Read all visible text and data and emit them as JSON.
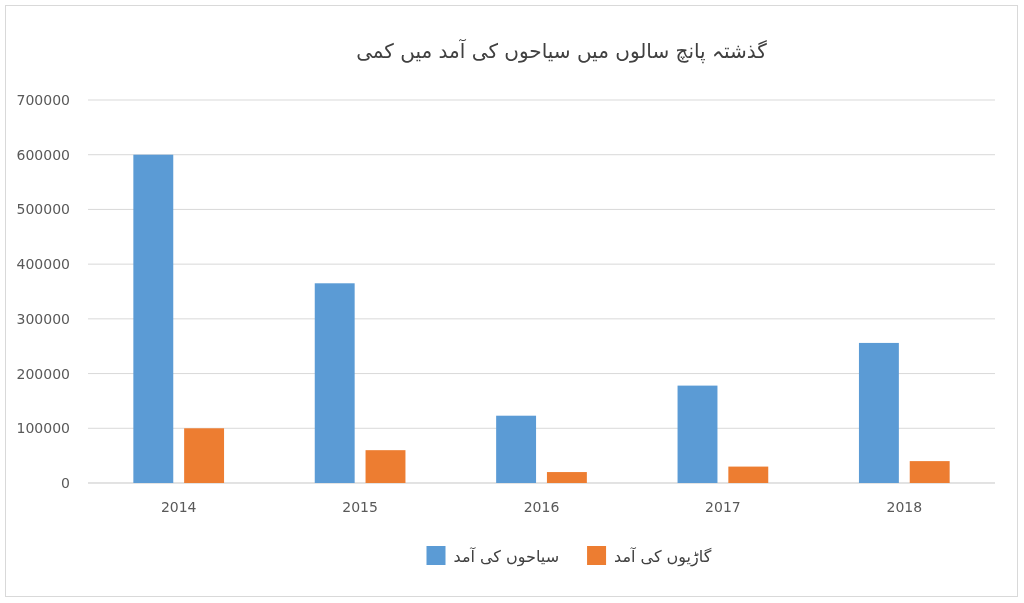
{
  "chart_data": {
    "type": "bar",
    "title": "گذشتہ پانچ سالوں میں سیاحوں کی آمد میں کمی",
    "categories": [
      "2014",
      "2015",
      "2016",
      "2017",
      "2018"
    ],
    "series": [
      {
        "name": "سیاحوں کی آمد",
        "color": "#5b9bd5",
        "values": [
          600000,
          365000,
          123000,
          178000,
          256000
        ]
      },
      {
        "name": "گاڑیوں کی آمد",
        "color": "#ed7d31",
        "values": [
          100000,
          60000,
          20000,
          30000,
          40000
        ]
      }
    ],
    "ylim": [
      0,
      700000
    ],
    "yticks": [
      0,
      100000,
      200000,
      300000,
      400000,
      500000,
      600000,
      700000
    ],
    "grid": "y",
    "legend": "bottom"
  }
}
